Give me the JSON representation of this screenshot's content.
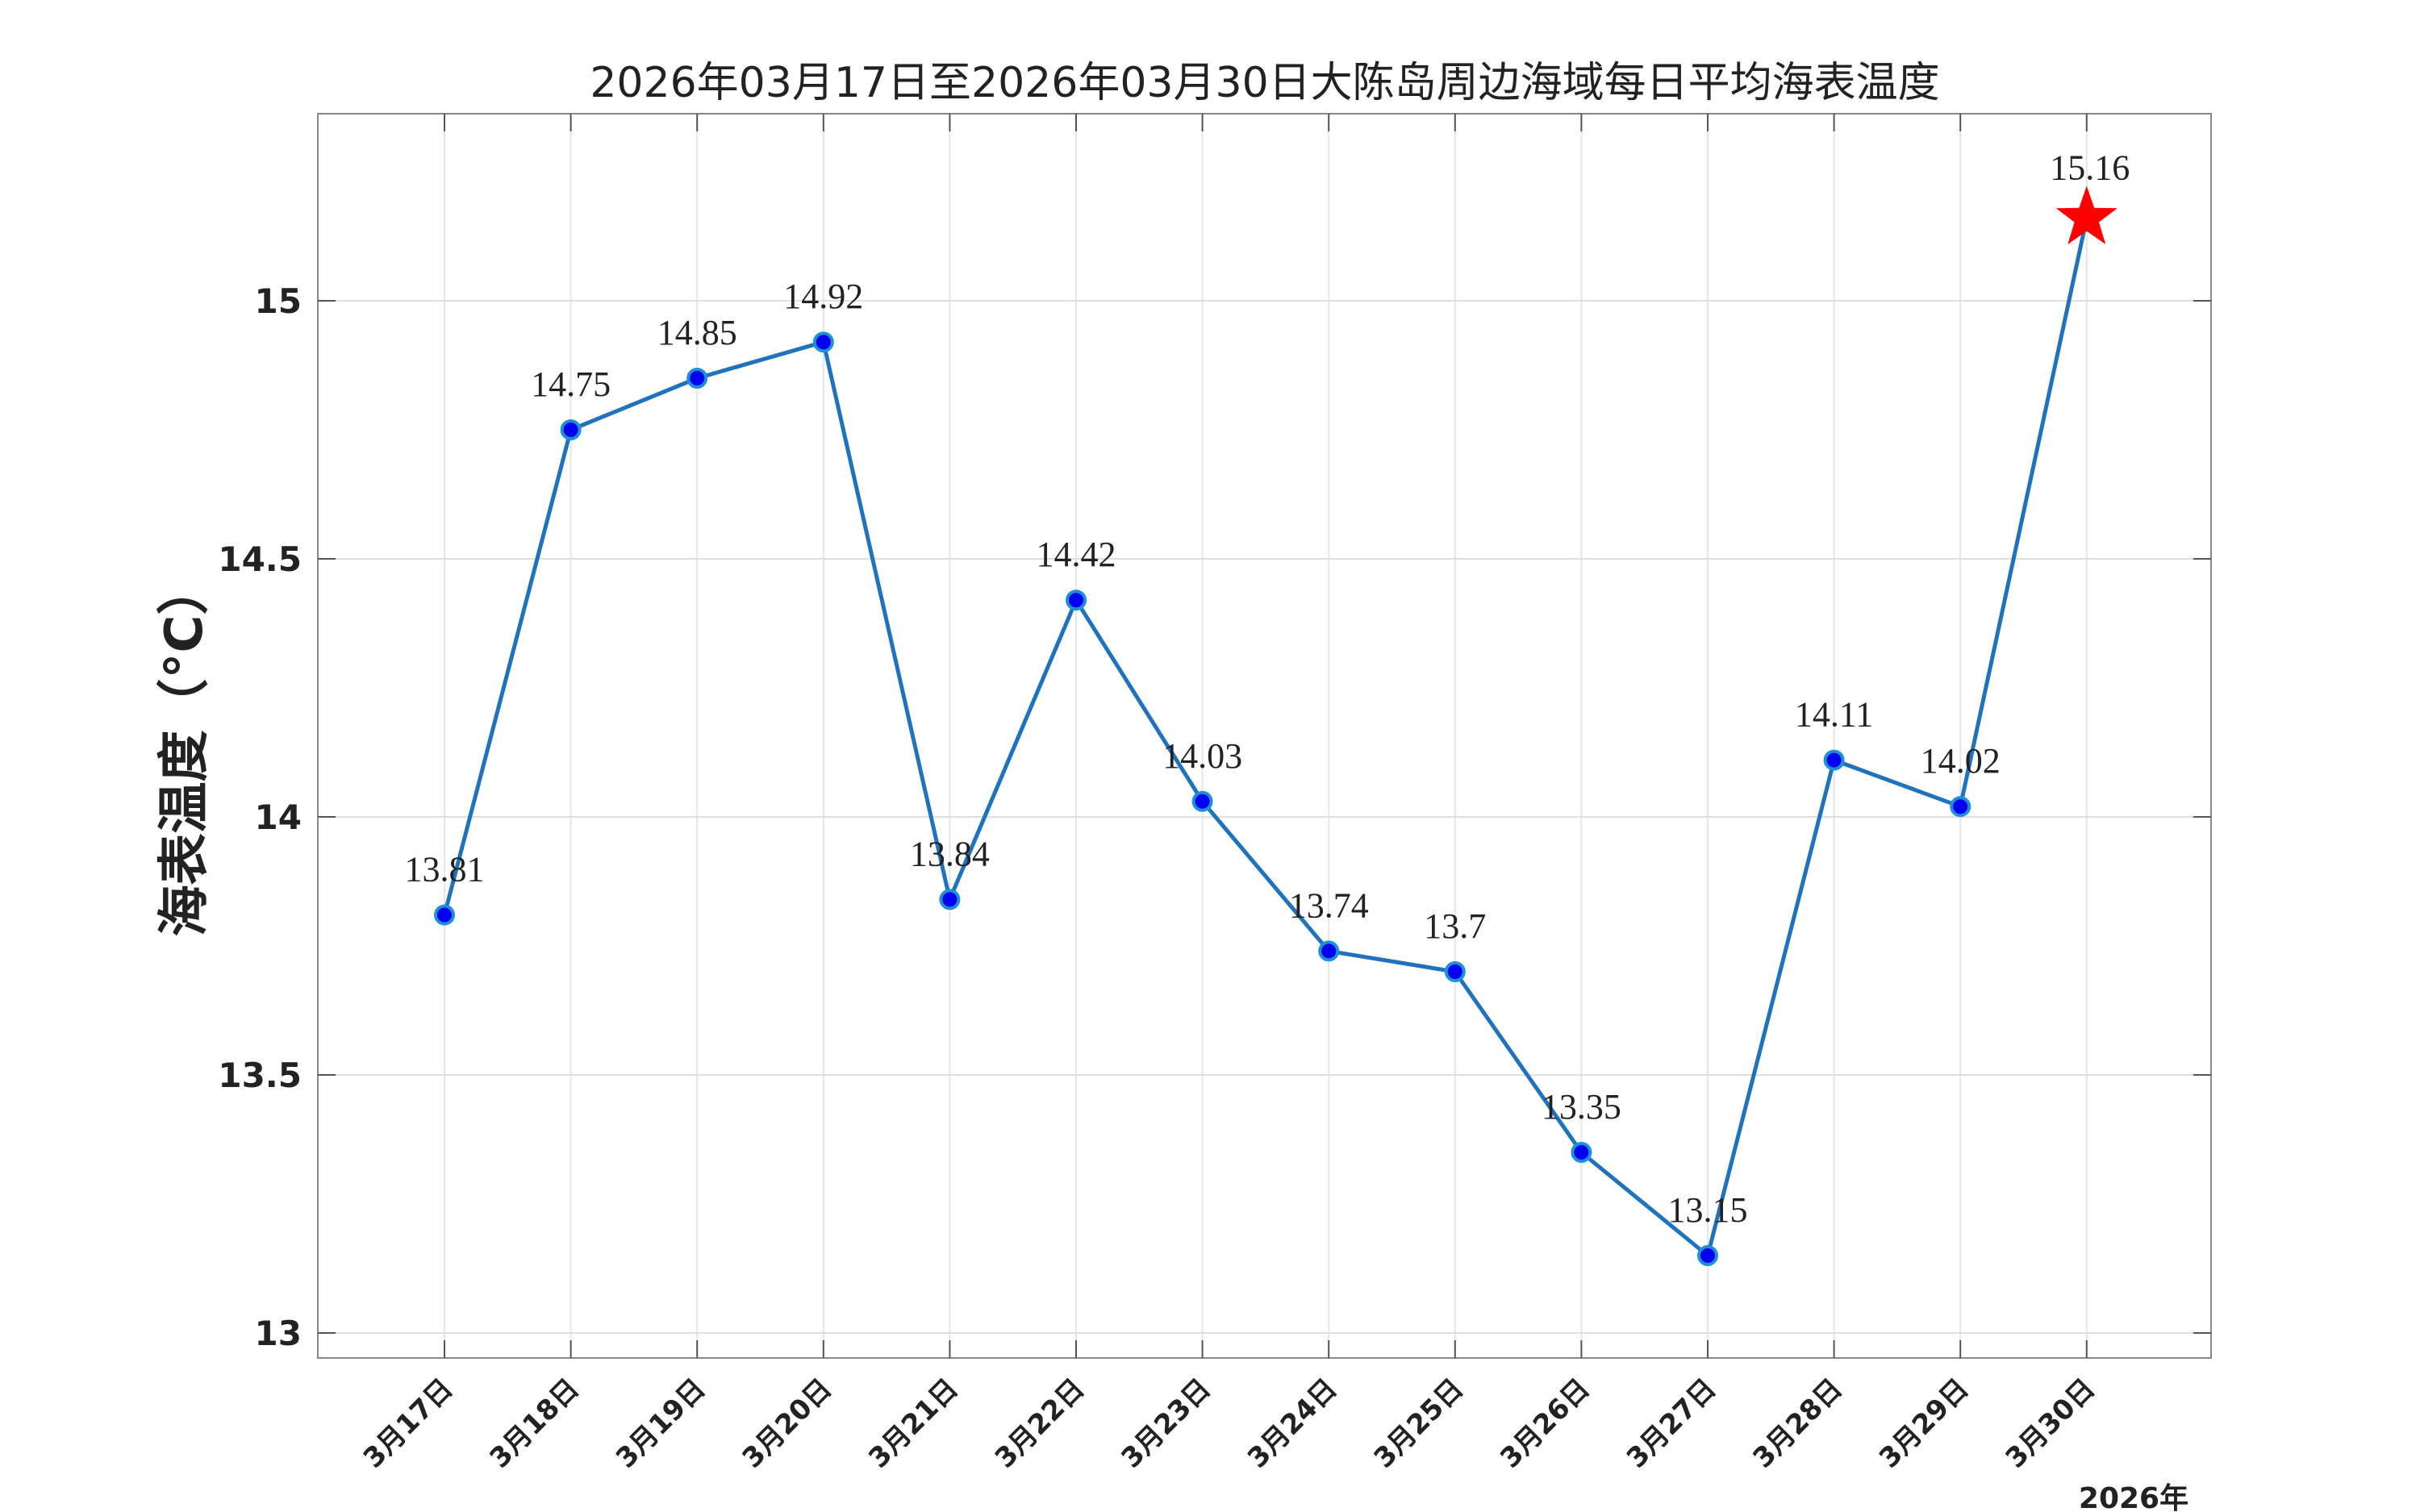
{
  "chart_data": {
    "type": "line",
    "title": "2026年03月17日至2026年03月30日大陈岛周边海域每日平均海表温度",
    "xlabel": "2026年",
    "ylabel": "海表温度（°C）",
    "categories": [
      "3月17日",
      "3月18日",
      "3月19日",
      "3月20日",
      "3月21日",
      "3月22日",
      "3月23日",
      "3月24日",
      "3月25日",
      "3月26日",
      "3月27日",
      "3月28日",
      "3月29日",
      "3月30日"
    ],
    "values": [
      13.81,
      14.75,
      14.85,
      14.92,
      13.84,
      14.42,
      14.03,
      13.74,
      13.7,
      13.35,
      13.15,
      14.11,
      14.02,
      15.16
    ],
    "value_labels": [
      "13.81",
      "14.75",
      "14.85",
      "14.92",
      "13.84",
      "14.42",
      "14.03",
      "13.74",
      "13.7",
      "13.35",
      "13.15",
      "14.11",
      "14.02",
      "15.16"
    ],
    "highlight_last": true,
    "ylim": [
      12.95,
      15.36
    ],
    "yticks": [
      13,
      13.5,
      14,
      14.5,
      15
    ],
    "ytick_labels": [
      "13",
      "13.5",
      "14",
      "14.5",
      "15"
    ],
    "grid": true,
    "colors": {
      "line": "#1f72bd",
      "marker": "#0000ee",
      "marker_edge": "#1f8fd6",
      "star": "#ff0000"
    }
  }
}
